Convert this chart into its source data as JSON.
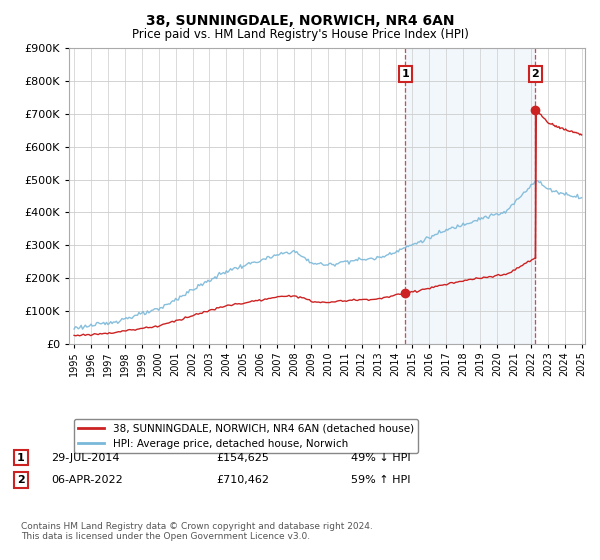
{
  "title": "38, SUNNINGDALE, NORWICH, NR4 6AN",
  "subtitle": "Price paid vs. HM Land Registry's House Price Index (HPI)",
  "legend_line1": "38, SUNNINGDALE, NORWICH, NR4 6AN (detached house)",
  "legend_line2": "HPI: Average price, detached house, Norwich",
  "annotation1_label": "1",
  "annotation1_date": "29-JUL-2014",
  "annotation1_price": "£154,625",
  "annotation1_pct": "49% ↓ HPI",
  "annotation1_year": 2014.57,
  "annotation1_value": 154625,
  "annotation2_label": "2",
  "annotation2_date": "06-APR-2022",
  "annotation2_price": "£710,462",
  "annotation2_pct": "59% ↑ HPI",
  "annotation2_year": 2022.27,
  "annotation2_value": 710462,
  "footer": "Contains HM Land Registry data © Crown copyright and database right 2024.\nThis data is licensed under the Open Government Licence v3.0.",
  "hpi_color": "#7ab8d9",
  "price_color": "#cc2222",
  "marker_color": "#cc2222",
  "vline_color": "#cc2222",
  "shade_color": "#ddeeff",
  "ylim": [
    0,
    900000
  ],
  "xlim_start": 1995,
  "xlim_end": 2025,
  "background_color": "#ffffff",
  "grid_color": "#cccccc"
}
